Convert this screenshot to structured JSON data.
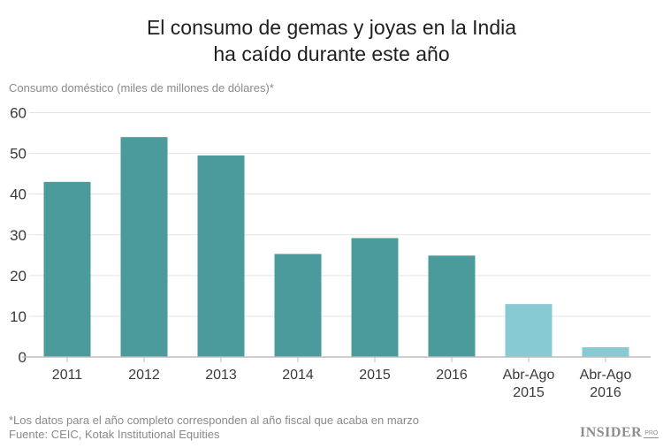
{
  "chart_data": {
    "type": "bar",
    "title": "El consumo de gemas y joyas en la India ha caído durante este año",
    "title_lines": [
      "El consumo de gemas y joyas en la India",
      "ha caído durante este año"
    ],
    "ylabel": "Consumo doméstico (miles de millones de dólares)*",
    "xlabel": "",
    "ylim": [
      0,
      60
    ],
    "yticks": [
      0,
      10,
      20,
      30,
      40,
      50,
      60
    ],
    "grid": true,
    "categories": [
      [
        "2011"
      ],
      [
        "2012"
      ],
      [
        "2013"
      ],
      [
        "2014"
      ],
      [
        "2015"
      ],
      [
        "2016"
      ],
      [
        "Abr-Ago",
        "2015"
      ],
      [
        "Abr-Ago",
        "2016"
      ]
    ],
    "values": [
      43,
      54,
      49.5,
      25.3,
      29.2,
      24.9,
      13.0,
      2.4
    ],
    "colors": [
      "#4b9b9c",
      "#4b9b9c",
      "#4b9b9c",
      "#4b9b9c",
      "#4b9b9c",
      "#4b9b9c",
      "#87cad3",
      "#87cad3"
    ]
  },
  "footnote": {
    "note": "*Los datos para el año completo corresponden al año fiscal que acaba en marzo",
    "source": "Fuente: CEIC, Kotak Institutional Equities"
  },
  "logo": {
    "main": "INSIDER",
    "sub": "PRO"
  }
}
